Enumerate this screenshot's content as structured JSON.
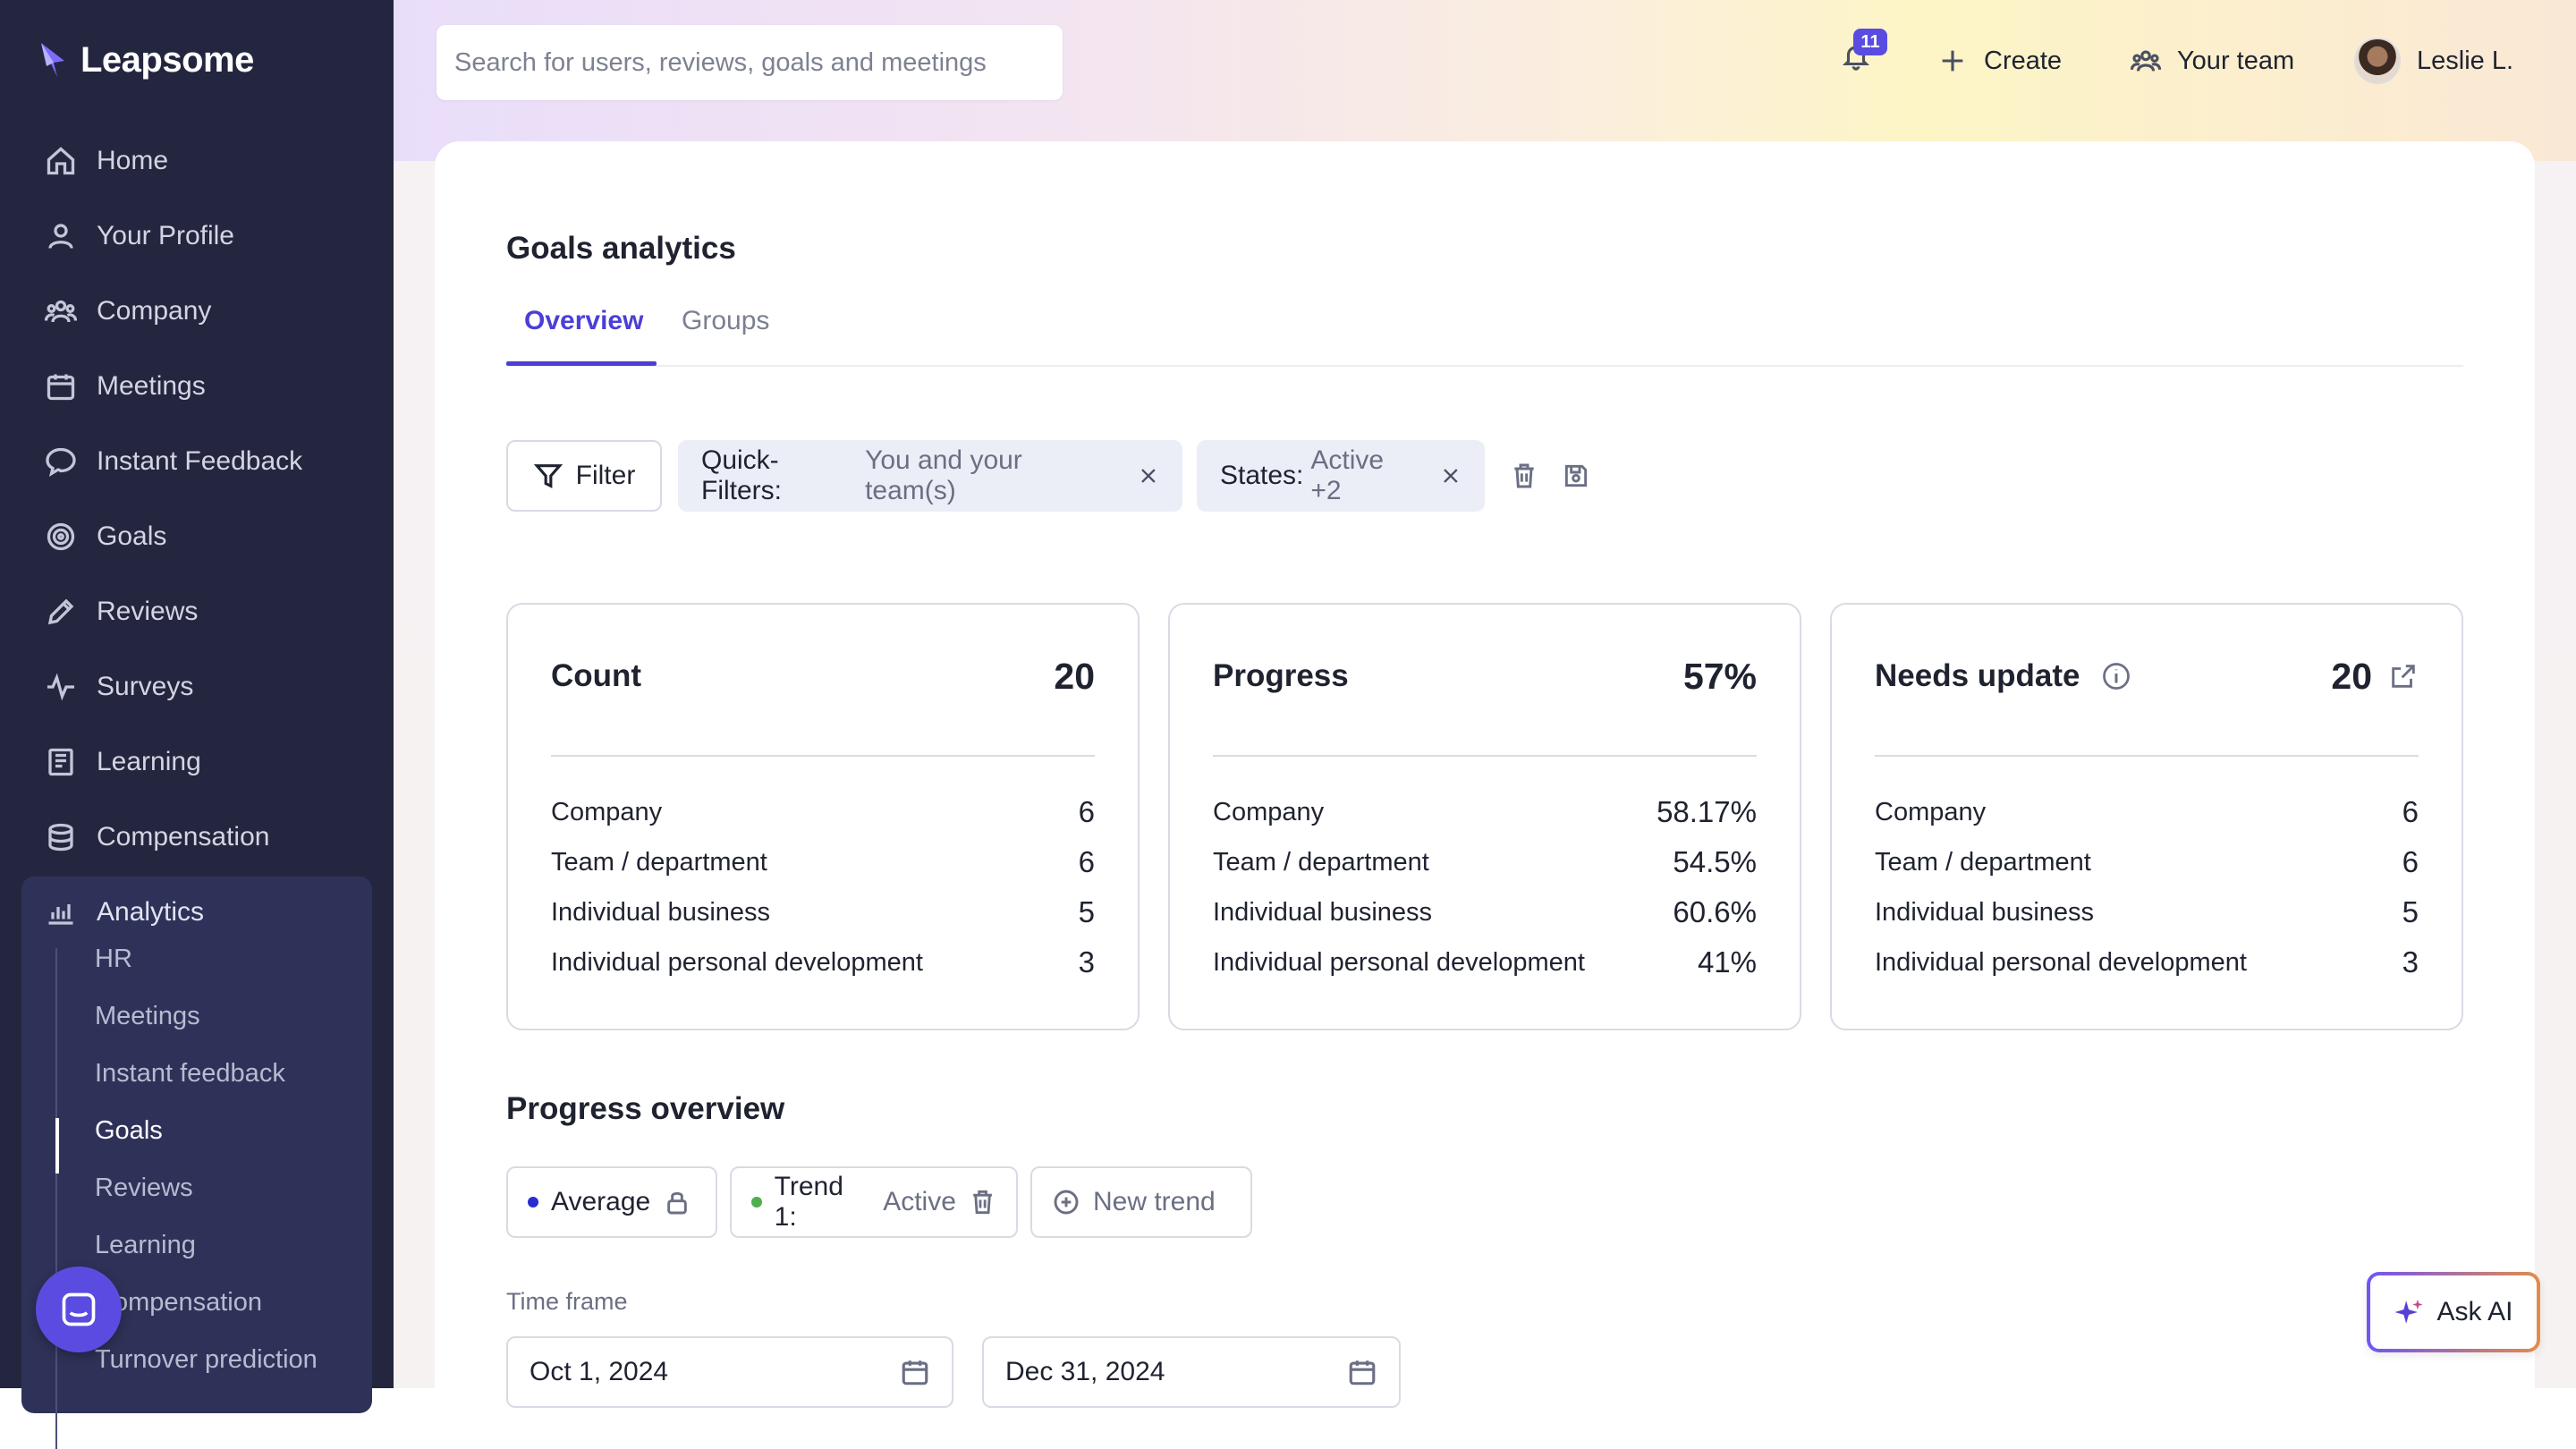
{
  "brand": {
    "name": "Leapsome"
  },
  "sidebar": {
    "items": [
      {
        "label": "Home",
        "icon": "home-icon"
      },
      {
        "label": "Your Profile",
        "icon": "user-icon"
      },
      {
        "label": "Company",
        "icon": "people-icon"
      },
      {
        "label": "Meetings",
        "icon": "calendar-icon"
      },
      {
        "label": "Instant Feedback",
        "icon": "chat-icon"
      },
      {
        "label": "Goals",
        "icon": "target-icon"
      },
      {
        "label": "Reviews",
        "icon": "pencil-icon"
      },
      {
        "label": "Surveys",
        "icon": "pulse-icon"
      },
      {
        "label": "Learning",
        "icon": "book-icon"
      },
      {
        "label": "Compensation",
        "icon": "coins-icon"
      }
    ],
    "analytics": {
      "label": "Analytics",
      "sub_items": [
        "HR",
        "Meetings",
        "Instant feedback",
        "Goals",
        "Reviews",
        "Learning",
        "Compensation",
        "Turnover prediction"
      ],
      "active": "Goals"
    }
  },
  "topbar": {
    "search_placeholder": "Search for users, reviews, goals and meetings",
    "notifications_count": "11",
    "create_label": "Create",
    "your_team_label": "Your team",
    "user_name": "Leslie L."
  },
  "page": {
    "title": "Goals analytics",
    "tabs": [
      {
        "label": "Overview",
        "active": true
      },
      {
        "label": "Groups",
        "active": false
      }
    ]
  },
  "filters": {
    "filter_label": "Filter",
    "chips": [
      {
        "key": "Quick-Filters:",
        "value": "You and your team(s)"
      },
      {
        "key": "States:",
        "value": "Active +2"
      }
    ]
  },
  "stats": [
    {
      "title": "Count",
      "value": "20",
      "rows": [
        {
          "label": "Company",
          "value": "6"
        },
        {
          "label": "Team / department",
          "value": "6"
        },
        {
          "label": "Individual business",
          "value": "5"
        },
        {
          "label": "Individual personal development",
          "value": "3"
        }
      ]
    },
    {
      "title": "Progress",
      "value": "57%",
      "rows": [
        {
          "label": "Company",
          "value": "58.17%"
        },
        {
          "label": "Team / department",
          "value": "54.5%"
        },
        {
          "label": "Individual business",
          "value": "60.6%"
        },
        {
          "label": "Individual personal development",
          "value": "41%"
        }
      ]
    },
    {
      "title": "Needs update",
      "value": "20",
      "rows": [
        {
          "label": "Company",
          "value": "6"
        },
        {
          "label": "Team / department",
          "value": "6"
        },
        {
          "label": "Individual business",
          "value": "5"
        },
        {
          "label": "Individual personal development",
          "value": "3"
        }
      ]
    }
  ],
  "progress_overview": {
    "title": "Progress overview",
    "average_label": "Average",
    "trend_key": "Trend 1:",
    "trend_value": "Active",
    "new_trend_label": "New trend",
    "time_frame_label": "Time frame",
    "start_date": "Oct 1, 2024",
    "end_date": "Dec 31, 2024"
  },
  "ask_ai_label": "Ask AI",
  "colors": {
    "accent": "#4b3fd6",
    "sidebar": "#24263f",
    "trend_dot": "#4caf50",
    "average_dot": "#2a2ccf"
  }
}
